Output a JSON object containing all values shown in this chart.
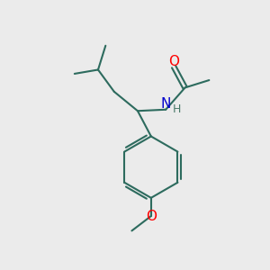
{
  "bg_color": "#ebebeb",
  "bond_color": "#2d6b5e",
  "bond_width": 1.5,
  "o_color": "#ff0000",
  "n_color": "#0000cc",
  "font_size_atom": 11,
  "font_size_h": 9,
  "xlim": [
    0,
    10
  ],
  "ylim": [
    0,
    10
  ]
}
